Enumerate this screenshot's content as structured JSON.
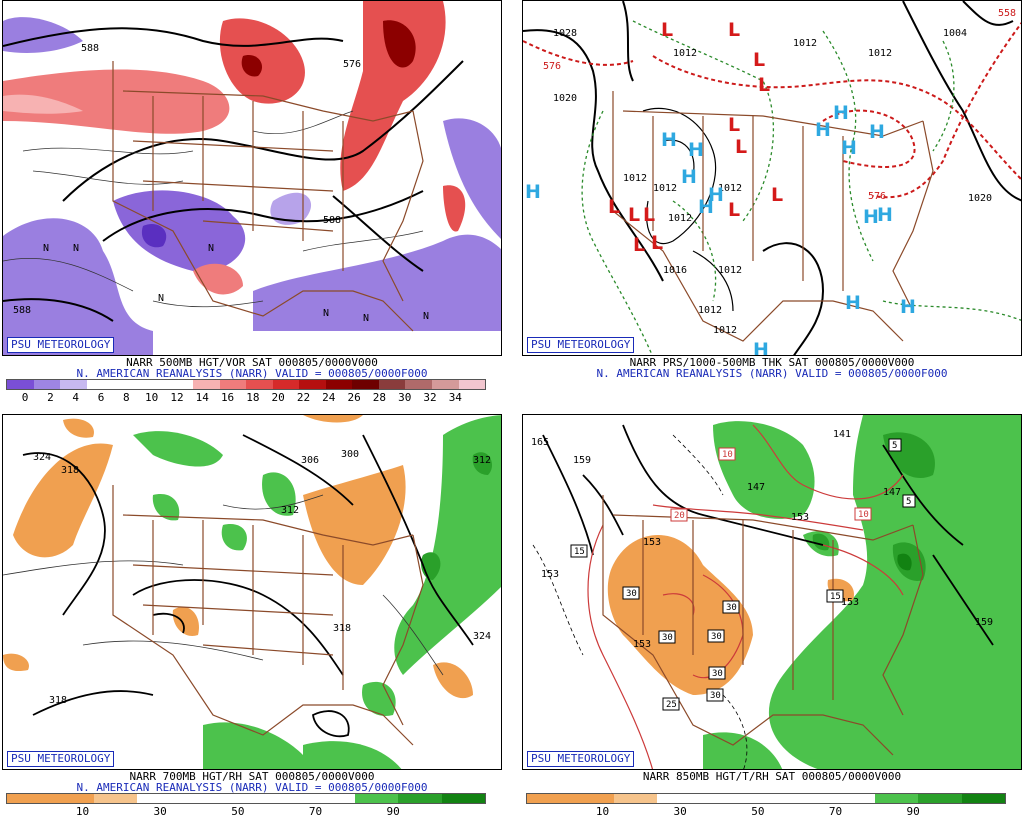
{
  "panels": [
    {
      "id": "p1",
      "badge": "PSU METEOROLOGY",
      "caption1": "NARR 500MB HGT/VOR SAT 000805/0000V000",
      "caption2": "N. AMERICAN REANALYSIS (NARR) VALID = 000805/0000F000",
      "colorbar": [
        "#7a4fd6",
        "#9e85e3",
        "#c7b9f0",
        "#ffffff",
        "#ffffff",
        "#ffffff",
        "#ffffff",
        "#f7b2b2",
        "#ef7c7c",
        "#e55050",
        "#d62a2a",
        "#b50f0f",
        "#8c0000",
        "#6e0000",
        "#8a3c3c",
        "#b06a6a",
        "#d49a9a",
        "#f2c6cf"
      ],
      "ticks": [
        "0",
        "2",
        "4",
        "6",
        "8",
        "10",
        "12",
        "14",
        "16",
        "18",
        "20",
        "22",
        "24",
        "26",
        "28",
        "30",
        "32",
        "34"
      ],
      "labels": [
        "588",
        "588",
        "588",
        "588",
        "576",
        "N"
      ]
    },
    {
      "id": "p2",
      "badge": "PSU METEOROLOGY",
      "caption1": "NARR PRS/1000-500MB THK SAT 000805/0000V000",
      "caption2": "N. AMERICAN REANALYSIS (NARR) VALID = 000805/0000F000",
      "labels": [
        "1028",
        "1012",
        "1012",
        "1012",
        "1004",
        "1020",
        "1012",
        "1012",
        "1012",
        "1012",
        "1020",
        "1016",
        "1012",
        "1012",
        "1012",
        "576",
        "576",
        "558",
        "L",
        "H"
      ]
    },
    {
      "id": "p3",
      "badge": "PSU METEOROLOGY",
      "caption1": "NARR 700MB HGT/RH SAT 000805/0000V000",
      "caption2": "N. AMERICAN REANALYSIS (NARR) VALID = 000805/0000F000",
      "colorbar": [
        "#f0a050",
        "#f0a050",
        "#f6c48c",
        "#ffffff",
        "#ffffff",
        "#ffffff",
        "#ffffff",
        "#ffffff",
        "#4cc24c",
        "#2aa02a",
        "#128212"
      ],
      "ticks": [
        "10",
        "30",
        "50",
        "70",
        "90"
      ],
      "labels": [
        "324",
        "318",
        "306",
        "300",
        "312",
        "312",
        "318",
        "324",
        "318"
      ]
    },
    {
      "id": "p4",
      "badge": "PSU METEOROLOGY",
      "caption1": "NARR 850MB HGT/T/RH SAT 000805/0000V000",
      "colorbar": [
        "#f0a050",
        "#f0a050",
        "#f6c48c",
        "#ffffff",
        "#ffffff",
        "#ffffff",
        "#ffffff",
        "#ffffff",
        "#4cc24c",
        "#2aa02a",
        "#128212"
      ],
      "ticks": [
        "10",
        "30",
        "50",
        "70",
        "90"
      ],
      "labels": [
        "165",
        "159",
        "141",
        "147",
        "153",
        "153",
        "153",
        "159",
        "153",
        "147",
        "10",
        "10",
        "20",
        "15",
        "15",
        "30",
        "30",
        "30",
        "30",
        "30",
        "30",
        "25",
        "5",
        "5",
        "10",
        "153"
      ]
    }
  ]
}
